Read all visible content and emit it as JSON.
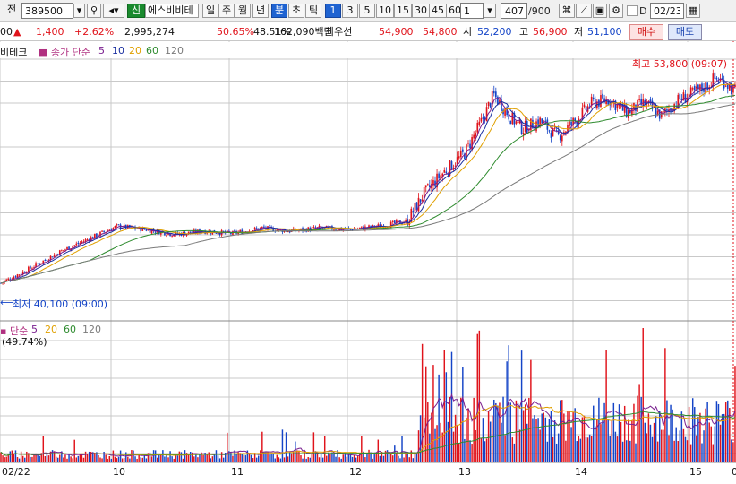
{
  "toolbar": {
    "mode_label": "전",
    "code_value": "389500",
    "badge": "신",
    "stock_name": "에스비비테",
    "period_tabs": [
      "일",
      "주",
      "월",
      "년",
      "분",
      "초",
      "틱"
    ],
    "interval_tabs": [
      "1",
      "3",
      "5",
      "10",
      "15",
      "30",
      "45",
      "60"
    ],
    "selected_period": "분",
    "selected_interval": "1",
    "unit_value": "1",
    "count_current": "407",
    "count_total": "/900",
    "date_checkbox_label": "D",
    "date_value": "02/23"
  },
  "quote": {
    "prev_price": "00",
    "change_symbol": "▲",
    "change": "1,400",
    "change_pct": "+2.62%",
    "volume": "2,995,274",
    "ratio1": "50.65%",
    "ratio2": "48.51%",
    "amount": "162,090백만",
    "priority_label": "최우선",
    "ask": "54,900",
    "bid": "54,800",
    "open_label": "시",
    "open": "52,200",
    "high_label": "고",
    "high": "56,900",
    "low_label": "저",
    "low": "51,100",
    "buy_label": "매수",
    "sell_label": "매도"
  },
  "price_legend": {
    "name": "비테크",
    "ma_title": "종가 단순",
    "periods": [
      "5",
      "10",
      "20",
      "60",
      "120"
    ]
  },
  "volume_legend": {
    "ma_title": "단순",
    "periods": [
      "5",
      "20",
      "60",
      "120"
    ],
    "ratio": "(49.74%)"
  },
  "annotations": {
    "high_text": "최고 53,800 (09:07)",
    "low_text": "최저 40,100 (09:00)"
  },
  "date_axis": [
    "02/22",
    "10",
    "11",
    "12",
    "13",
    "14",
    "15",
    "0"
  ],
  "colors": {
    "up": "#e0131b",
    "down": "#1444c7",
    "ma5": "#7a1f8f",
    "ma10": "#1a2fa0",
    "ma20": "#e0a000",
    "ma60": "#2e8b2e",
    "ma120": "#7a7a7a",
    "grid": "#c9c9c9"
  },
  "chart_data": {
    "type": "candlestick",
    "session_high": 53800,
    "session_low": 40100,
    "ylim": [
      39000,
      54800
    ],
    "x_labels": [
      "02/22",
      "10",
      "11",
      "12",
      "13",
      "14",
      "15",
      "0"
    ],
    "price_path": [
      [
        0,
        41000
      ],
      [
        5,
        41900
      ],
      [
        10,
        42900
      ],
      [
        15,
        43700
      ],
      [
        20,
        44500
      ],
      [
        25,
        44300
      ],
      [
        30,
        44000
      ],
      [
        35,
        44200
      ],
      [
        40,
        44050
      ],
      [
        45,
        44400
      ],
      [
        50,
        44200
      ],
      [
        55,
        44400
      ],
      [
        60,
        44300
      ],
      [
        65,
        44500
      ],
      [
        70,
        44800
      ],
      [
        73,
        46500
      ],
      [
        76,
        47700
      ],
      [
        80,
        49000
      ],
      [
        83,
        51000
      ],
      [
        85,
        52600
      ],
      [
        88,
        51200
      ],
      [
        90,
        50500
      ],
      [
        93,
        51000
      ],
      [
        96,
        50000
      ],
      [
        99,
        51000
      ],
      [
        102,
        52100
      ],
      [
        105,
        52300
      ],
      [
        108,
        51500
      ],
      [
        111,
        52100
      ],
      [
        114,
        51300
      ],
      [
        117,
        52300
      ],
      [
        120,
        52800
      ],
      [
        122,
        53200
      ],
      [
        123,
        53600
      ],
      [
        124,
        53500
      ],
      [
        125,
        53400
      ],
      [
        126,
        53000
      ],
      [
        127,
        52800
      ]
    ],
    "ma_series": [
      {
        "name": "5",
        "color": "#7a1f8f",
        "lag": 1
      },
      {
        "name": "10",
        "color": "#1a2fa0",
        "lag": 2
      },
      {
        "name": "20",
        "color": "#e0a000",
        "lag": 4
      },
      {
        "name": "60",
        "color": "#2e8b2e",
        "lag": 12
      },
      {
        "name": "120",
        "color": "#7a7a7a",
        "lag": 25
      }
    ]
  }
}
